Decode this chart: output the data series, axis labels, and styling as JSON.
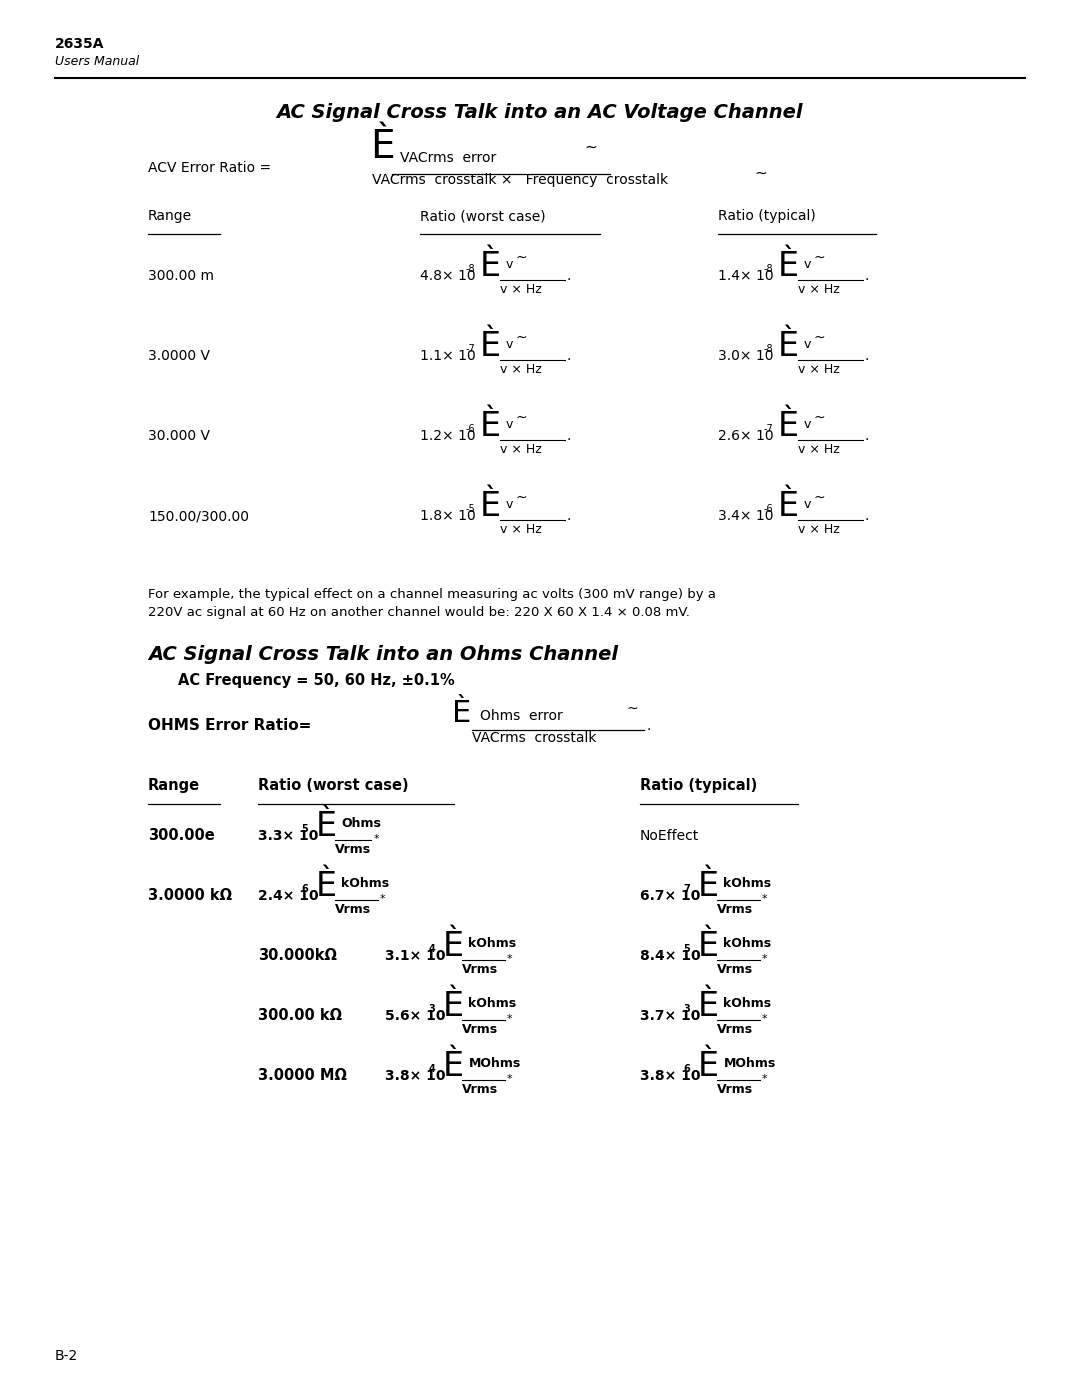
{
  "page_title": "2635A",
  "page_subtitle": "Users Manual",
  "section1_title": "AC Signal Cross Talk into an AC Voltage Channel",
  "section2_title": "AC Signal Cross Talk into an Ohms Channel",
  "ac_freq_note": "AC Frequency = 50, 60 Hz, ±0.1%",
  "example_line1": "For example, the typical effect on a channel measuring ac volts (300 mV range) by a",
  "example_line2": "220V ac signal at 60 Hz on another channel would be: 220 X 60 X 1.4 × 0.08 mV.",
  "page_number": "B-2",
  "bg_color": "#ffffff",
  "text_color": "#000000",
  "fig_w": 10.8,
  "fig_h": 13.97,
  "dpi": 100
}
